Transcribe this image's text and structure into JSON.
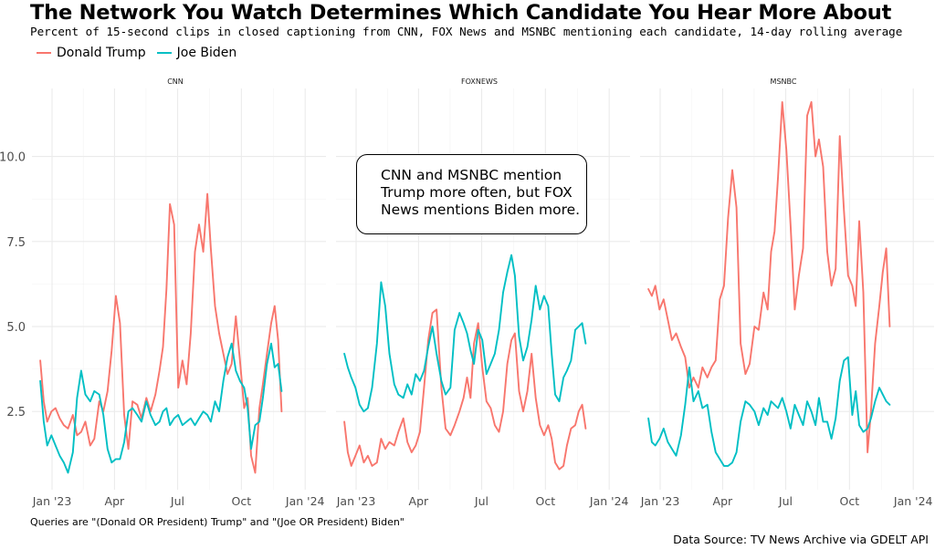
{
  "title": "The Network You Watch Determines Which Candidate You Hear More About",
  "subtitle": "Percent of 15-second clips in closed captioning from CNN, FOX News and MSNBC mentioning each candidate, 14-day rolling average",
  "legend": [
    {
      "name": "Donald Trump",
      "color": "#F8766D"
    },
    {
      "name": "Joe Biden",
      "color": "#00BFC4"
    }
  ],
  "annotation": "CNN and MSNBC mention Trump more often, but FOX News mentions Biden more.",
  "caption": "Queries are \"(Donald OR President) Trump\" and \"(Joe OR President) Biden\"",
  "source": "Data Source: TV News Archive via GDELT API",
  "chart_data": {
    "type": "line",
    "facet_by": "network",
    "x_ticks": [
      "Jan '23",
      "Apr",
      "Jul",
      "Oct",
      "Jan '24"
    ],
    "x_tick_dates": [
      "2023-01-01",
      "2023-04-01",
      "2023-07-01",
      "2023-10-01",
      "2024-01-01"
    ],
    "xlim": [
      "2022-12-03",
      "2024-01-31"
    ],
    "y_ticks": [
      "2.5",
      "5.0",
      "7.5",
      "10.0"
    ],
    "y_tick_values": [
      2.5,
      5.0,
      7.5,
      10.0
    ],
    "ylim": [
      0.2,
      12.0
    ],
    "grid": true,
    "legend_position": "top-left",
    "panels": [
      {
        "label": "CNN",
        "x": [
          "2022-12-15",
          "2022-12-20",
          "2022-12-25",
          "2022-12-31",
          "2023-01-06",
          "2023-01-12",
          "2023-01-18",
          "2023-01-24",
          "2023-01-31",
          "2023-02-06",
          "2023-02-12",
          "2023-02-18",
          "2023-02-25",
          "2023-03-03",
          "2023-03-10",
          "2023-03-16",
          "2023-03-22",
          "2023-03-28",
          "2023-04-03",
          "2023-04-09",
          "2023-04-15",
          "2023-04-21",
          "2023-04-27",
          "2023-05-04",
          "2023-05-10",
          "2023-05-17",
          "2023-05-23",
          "2023-05-30",
          "2023-06-05",
          "2023-06-10",
          "2023-06-15",
          "2023-06-20",
          "2023-06-26",
          "2023-07-02",
          "2023-07-08",
          "2023-07-14",
          "2023-07-20",
          "2023-07-26",
          "2023-08-01",
          "2023-08-07",
          "2023-08-13",
          "2023-08-18",
          "2023-08-24",
          "2023-08-30",
          "2023-09-05",
          "2023-09-11",
          "2023-09-17",
          "2023-09-23",
          "2023-09-29",
          "2023-10-05",
          "2023-10-10",
          "2023-10-15",
          "2023-10-21",
          "2023-10-27",
          "2023-11-01",
          "2023-11-07",
          "2023-11-13",
          "2023-11-18",
          "2023-11-23",
          "2023-11-28"
        ],
        "series": [
          {
            "name": "Donald Trump",
            "values": [
              4.0,
              2.8,
              2.2,
              2.5,
              2.6,
              2.3,
              2.1,
              2.0,
              2.4,
              1.8,
              1.9,
              2.2,
              1.5,
              1.7,
              2.8,
              2.5,
              3.1,
              4.3,
              5.9,
              5.1,
              2.4,
              1.4,
              2.8,
              2.7,
              2.3,
              2.9,
              2.5,
              3.0,
              3.7,
              4.4,
              6.1,
              8.6,
              8.0,
              3.2,
              4.0,
              3.3,
              4.8,
              7.2,
              8.0,
              7.2,
              8.9,
              7.3,
              5.6,
              4.8,
              4.2,
              3.6,
              3.9,
              5.3,
              4.0,
              2.6,
              2.9,
              1.2,
              0.7,
              2.6,
              3.3,
              4.2,
              5.1,
              5.6,
              4.6,
              2.5
            ]
          },
          {
            "name": "Joe Biden",
            "values": [
              3.4,
              2.2,
              1.5,
              1.8,
              1.5,
              1.2,
              1.0,
              0.7,
              1.3,
              2.9,
              3.7,
              3.0,
              2.8,
              3.1,
              3.0,
              2.4,
              1.4,
              1.0,
              1.1,
              1.1,
              1.6,
              2.5,
              2.6,
              2.4,
              2.2,
              2.8,
              2.4,
              2.1,
              2.2,
              2.5,
              2.6,
              2.1,
              2.3,
              2.4,
              2.1,
              2.2,
              2.3,
              2.1,
              2.3,
              2.5,
              2.4,
              2.2,
              2.8,
              2.5,
              3.4,
              4.1,
              4.5,
              3.7,
              3.4,
              3.2,
              2.6,
              1.4,
              2.1,
              2.2,
              2.9,
              3.9,
              4.5,
              3.8,
              3.9,
              3.1
            ]
          }
        ]
      },
      {
        "label": "FOXNEWS",
        "x": [
          "2022-12-15",
          "2022-12-20",
          "2022-12-25",
          "2022-12-31",
          "2023-01-06",
          "2023-01-12",
          "2023-01-18",
          "2023-01-24",
          "2023-01-31",
          "2023-02-06",
          "2023-02-12",
          "2023-02-18",
          "2023-02-25",
          "2023-03-03",
          "2023-03-10",
          "2023-03-16",
          "2023-03-22",
          "2023-03-28",
          "2023-04-03",
          "2023-04-09",
          "2023-04-15",
          "2023-04-21",
          "2023-04-27",
          "2023-05-04",
          "2023-05-10",
          "2023-05-17",
          "2023-05-23",
          "2023-05-30",
          "2023-06-05",
          "2023-06-10",
          "2023-06-15",
          "2023-06-20",
          "2023-06-26",
          "2023-07-02",
          "2023-07-08",
          "2023-07-14",
          "2023-07-20",
          "2023-07-26",
          "2023-08-01",
          "2023-08-07",
          "2023-08-13",
          "2023-08-18",
          "2023-08-24",
          "2023-08-30",
          "2023-09-05",
          "2023-09-11",
          "2023-09-17",
          "2023-09-23",
          "2023-09-29",
          "2023-10-05",
          "2023-10-10",
          "2023-10-15",
          "2023-10-21",
          "2023-10-27",
          "2023-11-01",
          "2023-11-07",
          "2023-11-13",
          "2023-11-18",
          "2023-11-23",
          "2023-11-28"
        ],
        "series": [
          {
            "name": "Donald Trump",
            "values": [
              2.2,
              1.3,
              0.9,
              1.2,
              1.5,
              1.0,
              1.2,
              0.9,
              1.0,
              1.7,
              1.4,
              1.6,
              1.5,
              1.9,
              2.3,
              1.6,
              1.3,
              1.5,
              1.9,
              3.2,
              4.6,
              5.4,
              5.5,
              3.2,
              2.0,
              1.8,
              2.1,
              2.5,
              2.9,
              3.5,
              2.9,
              4.5,
              5.1,
              3.8,
              2.8,
              2.6,
              2.1,
              1.9,
              2.5,
              3.9,
              4.6,
              4.8,
              3.1,
              2.5,
              3.1,
              4.2,
              2.9,
              2.1,
              1.8,
              2.1,
              1.7,
              1.0,
              0.8,
              0.9,
              1.5,
              2.0,
              2.1,
              2.5,
              2.7,
              2.0
            ]
          },
          {
            "name": "Joe Biden",
            "values": [
              4.2,
              3.8,
              3.5,
              3.2,
              2.7,
              2.5,
              2.6,
              3.2,
              4.5,
              6.3,
              5.6,
              4.2,
              3.3,
              3.0,
              2.9,
              3.3,
              3.0,
              3.6,
              3.4,
              3.7,
              4.4,
              5.0,
              4.2,
              3.4,
              3.0,
              3.2,
              4.9,
              5.4,
              5.1,
              4.8,
              4.3,
              3.9,
              4.9,
              4.6,
              3.6,
              3.9,
              4.2,
              4.9,
              6.0,
              6.6,
              7.1,
              6.5,
              4.7,
              4.0,
              4.4,
              5.2,
              6.2,
              5.5,
              5.9,
              5.6,
              4.2,
              3.0,
              2.8,
              3.5,
              3.7,
              4.0,
              4.9,
              5.0,
              5.1,
              4.5
            ]
          }
        ]
      },
      {
        "label": "MSNBC",
        "x": [
          "2022-12-15",
          "2022-12-20",
          "2022-12-25",
          "2022-12-31",
          "2023-01-06",
          "2023-01-12",
          "2023-01-18",
          "2023-01-24",
          "2023-01-31",
          "2023-02-06",
          "2023-02-12",
          "2023-02-18",
          "2023-02-25",
          "2023-03-03",
          "2023-03-10",
          "2023-03-16",
          "2023-03-22",
          "2023-03-28",
          "2023-04-03",
          "2023-04-09",
          "2023-04-15",
          "2023-04-21",
          "2023-04-27",
          "2023-05-04",
          "2023-05-10",
          "2023-05-17",
          "2023-05-23",
          "2023-05-30",
          "2023-06-05",
          "2023-06-10",
          "2023-06-15",
          "2023-06-20",
          "2023-06-26",
          "2023-07-02",
          "2023-07-08",
          "2023-07-14",
          "2023-07-20",
          "2023-07-26",
          "2023-08-01",
          "2023-08-07",
          "2023-08-13",
          "2023-08-18",
          "2023-08-24",
          "2023-08-30",
          "2023-09-05",
          "2023-09-11",
          "2023-09-17",
          "2023-09-23",
          "2023-09-29",
          "2023-10-05",
          "2023-10-10",
          "2023-10-15",
          "2023-10-21",
          "2023-10-27",
          "2023-11-01",
          "2023-11-07",
          "2023-11-13",
          "2023-11-18",
          "2023-11-23",
          "2023-11-28"
        ],
        "series": [
          {
            "name": "Donald Trump",
            "values": [
              6.1,
              5.9,
              6.2,
              5.5,
              5.8,
              5.2,
              4.6,
              4.8,
              4.4,
              4.1,
              3.2,
              3.5,
              3.2,
              3.8,
              3.5,
              3.8,
              4.0,
              5.8,
              6.2,
              8.2,
              9.6,
              8.5,
              4.5,
              3.6,
              3.9,
              5.0,
              4.9,
              6.0,
              5.5,
              7.2,
              7.8,
              9.4,
              11.6,
              10.2,
              8.0,
              5.5,
              6.5,
              7.3,
              11.2,
              11.6,
              10.0,
              10.5,
              9.7,
              7.2,
              6.2,
              6.7,
              10.6,
              8.4,
              6.5,
              6.2,
              5.6,
              8.1,
              6.0,
              1.3,
              2.5,
              4.5,
              5.6,
              6.6,
              7.3,
              5.0
            ]
          },
          {
            "name": "Joe Biden",
            "values": [
              2.3,
              1.6,
              1.5,
              1.7,
              2.0,
              1.6,
              1.4,
              1.2,
              1.8,
              2.7,
              3.8,
              2.8,
              3.1,
              2.6,
              2.7,
              1.9,
              1.3,
              1.1,
              0.9,
              0.9,
              1.0,
              1.3,
              2.2,
              2.8,
              2.7,
              2.5,
              2.1,
              2.6,
              2.4,
              2.8,
              2.7,
              2.6,
              2.9,
              2.5,
              2.0,
              2.7,
              2.4,
              2.1,
              2.8,
              2.5,
              2.1,
              2.9,
              2.2,
              2.2,
              1.7,
              2.3,
              3.4,
              4.0,
              4.1,
              2.4,
              3.1,
              2.1,
              1.9,
              2.0,
              2.3,
              2.8,
              3.2,
              3.0,
              2.8,
              2.7
            ]
          }
        ]
      }
    ]
  }
}
